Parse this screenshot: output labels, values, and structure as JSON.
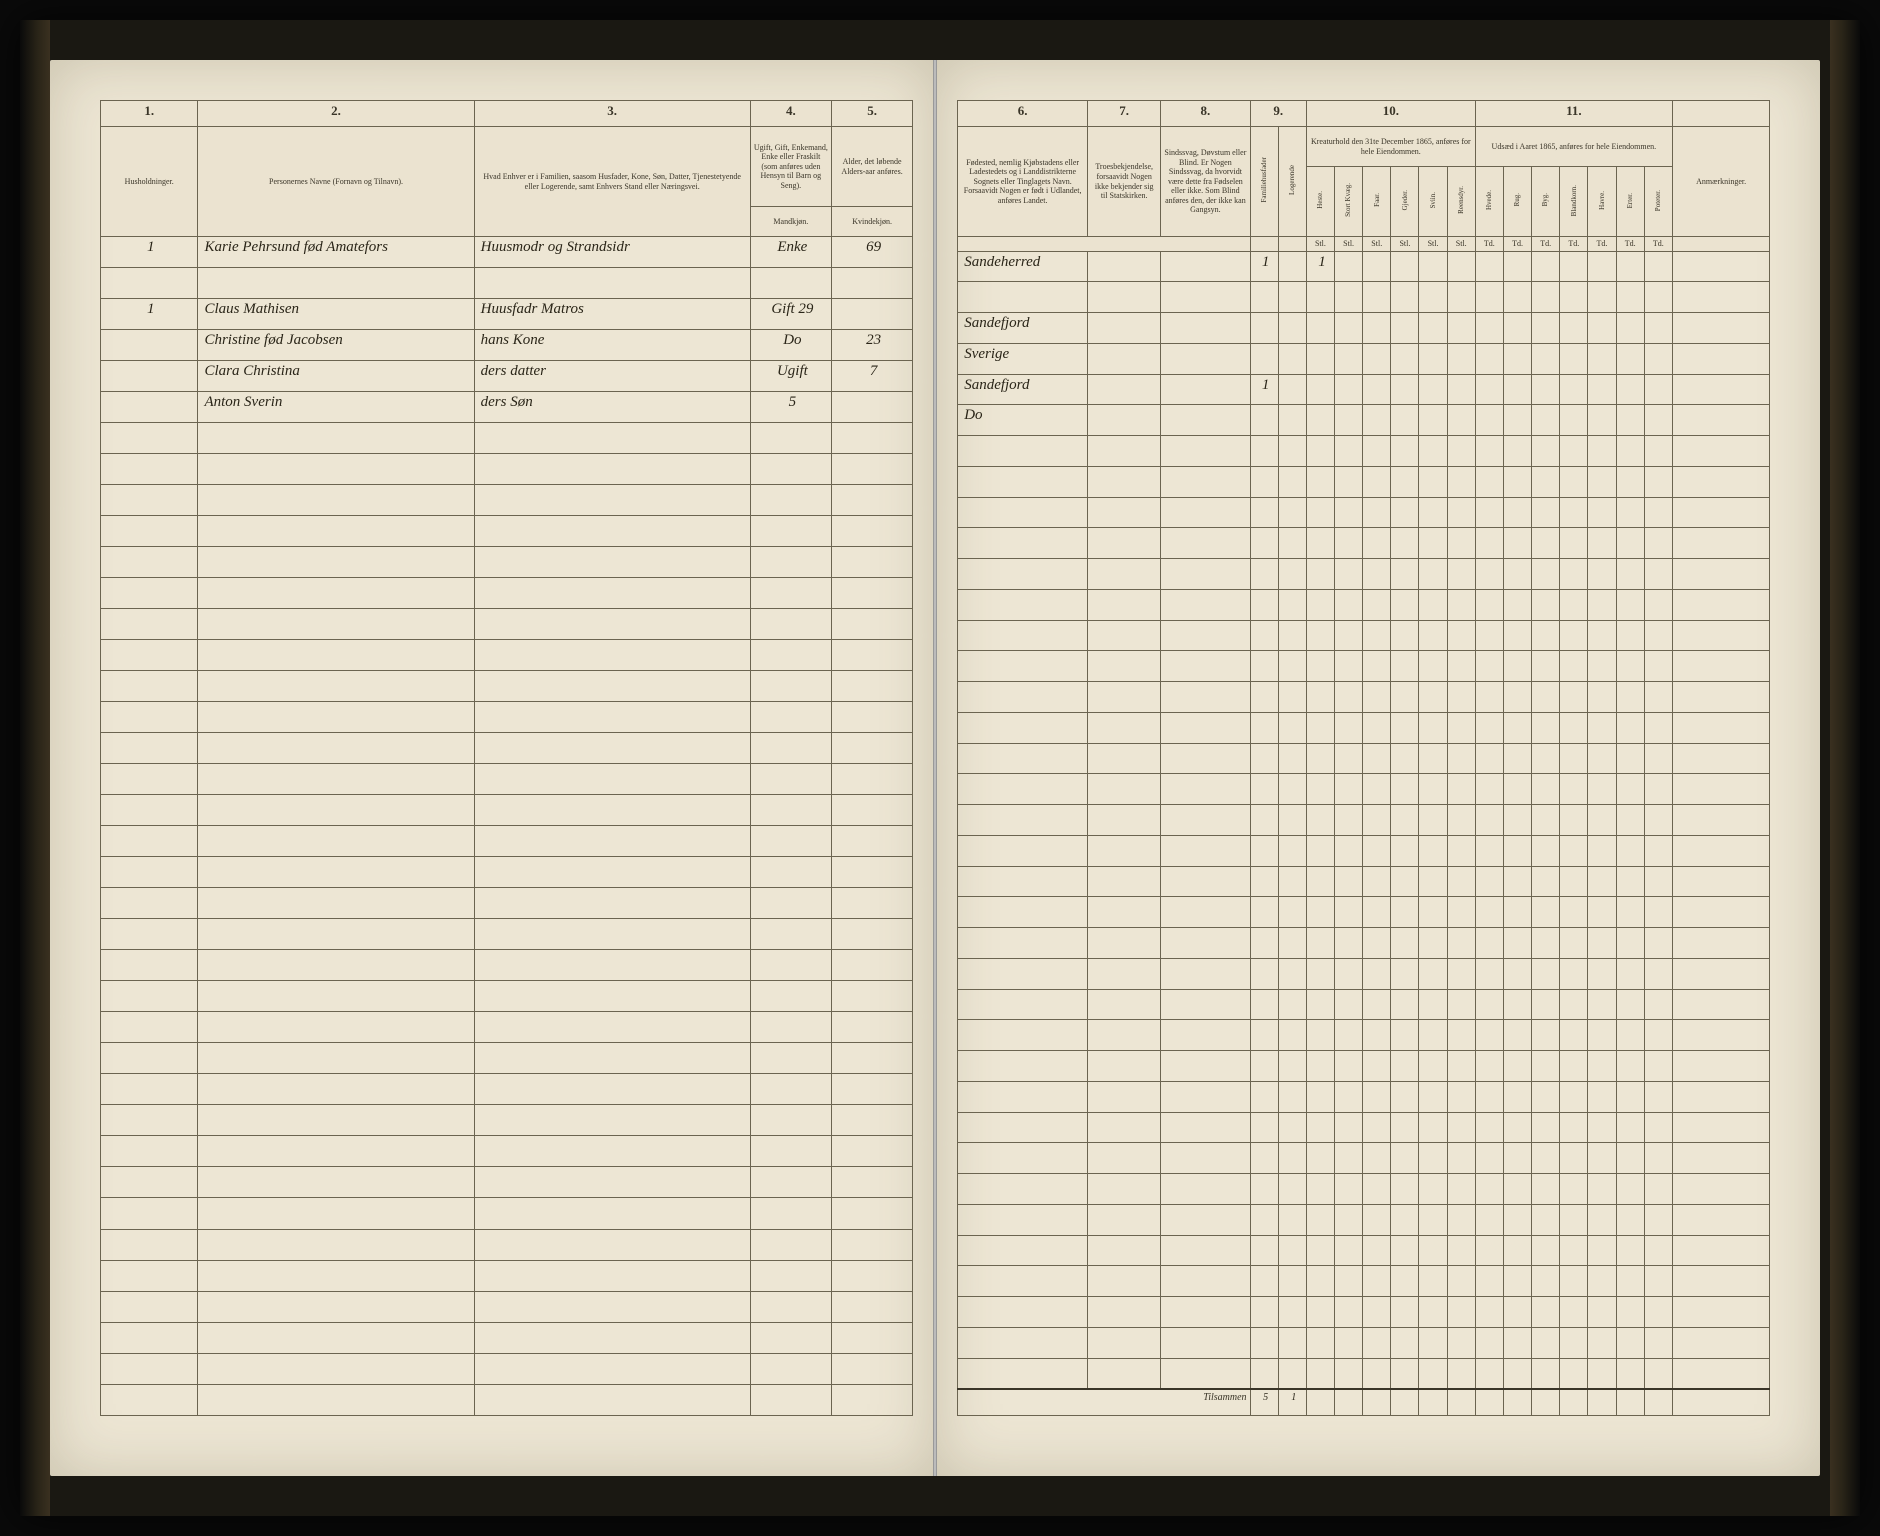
{
  "colors": {
    "page_bg": "#ede6d4",
    "ink": "#2a2518",
    "rule": "#6b6450",
    "book_bg": "#0a0a0a"
  },
  "left_page": {
    "column_numbers": [
      "1.",
      "2.",
      "3.",
      "4.",
      "5."
    ],
    "headers": {
      "col1": "Husholdninger.",
      "col2": "Personernes Navne (Fornavn og Tilnavn).",
      "col3": "Hvad Enhver er i Familien, saasom Husfader, Kone, Søn, Datter, Tjenestetyende eller Logerende, samt Enhvers Stand eller Næringsvei.",
      "col4_top": "Ugift, Gift, Enkemand, Enke eller Fraskilt (som anføres uden Hensyn til Barn og Seng).",
      "col4_sub": "Mandkjøn.",
      "col5_top": "Alder, det løbende Alders-aar anføres.",
      "col5_sub": "Kvindekjøn."
    },
    "rows": [
      {
        "hh": "1",
        "name": "Karie Pehrsund fød Amatefors",
        "role": "Huusmodr og Strandsidr",
        "status": "Enke",
        "age_f": "69"
      },
      {
        "hh": "1",
        "name": "Claus Mathisen",
        "role": "Huusfadr Matros",
        "status": "Gift",
        "age_m": "29",
        "age_f": ""
      },
      {
        "hh": "",
        "name": "Christine fød Jacobsen",
        "role": "hans Kone",
        "status": "Do",
        "age_m": "",
        "age_f": "23"
      },
      {
        "hh": "",
        "name": "Clara Christina",
        "role": "ders datter",
        "status": "Ugift",
        "age_m": "",
        "age_f": "7"
      },
      {
        "hh": "",
        "name": "Anton Sverin",
        "role": "ders Søn",
        "status": "",
        "age_m": "5",
        "age_f": ""
      }
    ]
  },
  "right_page": {
    "column_numbers": [
      "6.",
      "7.",
      "8.",
      "9.",
      "10.",
      "11."
    ],
    "headers": {
      "col6": "Fødested, nemlig Kjøbstadens eller Ladestedets og i Landdistrikterne Sognets eller Tinglagets Navn. Forsaavidt Nogen er født i Udlandet, anføres Landet.",
      "col7": "Troesbekjendelse, forsaavidt Nogen ikke bekjender sig til Statskirken.",
      "col8": "Sindssvag, Døvstum eller Blind. Er Nogen Sindssvag, da hvorvidt være dette fra Fødselen eller ikke. Som Blind anføres den, der ikke kan Gangsyn.",
      "col9_a": "Familiehusfader",
      "col9_b": "Logerende",
      "col10_top": "Kreaturhold den 31te December 1865, anføres for hele Eiendommen.",
      "col10_labels": [
        "Heste.",
        "Stort Kvæg.",
        "Faar.",
        "Gjeder.",
        "Sviin.",
        "Reensdyr."
      ],
      "col10_sub": "Stl.",
      "col11_top": "Udsæd i Aaret 1865, anføres for hele Eiendommen.",
      "col11_labels": [
        "Hvede.",
        "Rug.",
        "Byg.",
        "Blandkorn.",
        "Havre.",
        "Erter.",
        "Poteter."
      ],
      "col11_unit": "Td.",
      "col_anm": "Anmærkninger."
    },
    "rows": [
      {
        "birthplace": "Sandeherred",
        "col9a": "1",
        "heste": "1"
      },
      {
        "birthplace": "Sandefjord",
        "col9a": ""
      },
      {
        "birthplace": "Sverige",
        "col9a": ""
      },
      {
        "birthplace": "Sandefjord",
        "col9a": "1"
      },
      {
        "birthplace": "Do",
        "col9a": ""
      }
    ],
    "footer": {
      "label": "Tilsammen",
      "sum_a": "5",
      "sum_b": "1"
    }
  }
}
